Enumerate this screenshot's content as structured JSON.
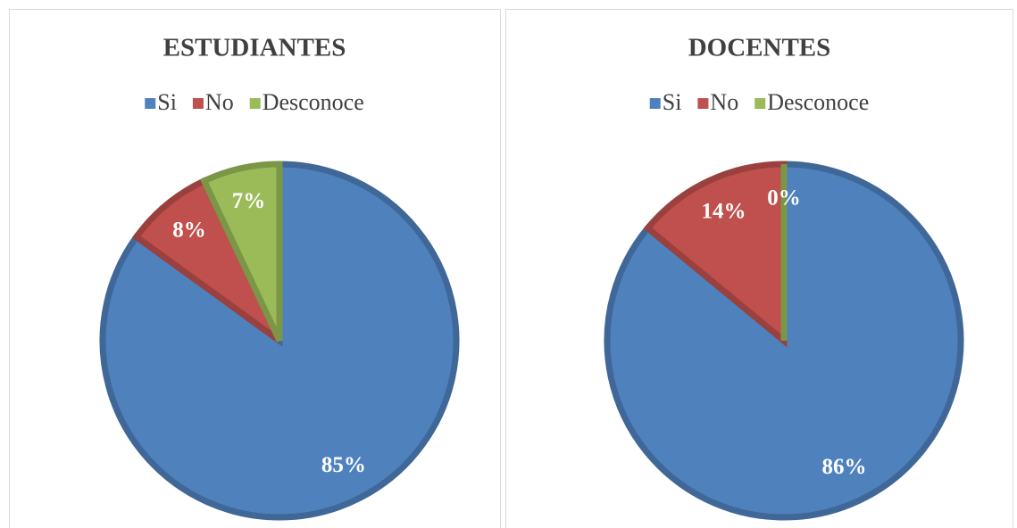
{
  "chart_data": [
    {
      "type": "pie",
      "title": "ESTUDIANTES",
      "categories": [
        "Si",
        "No",
        "Desconoce"
      ],
      "values": [
        85,
        8,
        7
      ],
      "value_labels": [
        "85%",
        "8%",
        "7%"
      ],
      "colors": [
        "#4f81bd",
        "#c0504d",
        "#9bbb59"
      ]
    },
    {
      "type": "pie",
      "title": "DOCENTES",
      "categories": [
        "Si",
        "No",
        "Desconoce"
      ],
      "values": [
        86,
        14,
        0
      ],
      "value_labels": [
        "86%",
        "14%",
        "0%"
      ],
      "colors": [
        "#4f81bd",
        "#c0504d",
        "#9bbb59"
      ]
    }
  ]
}
